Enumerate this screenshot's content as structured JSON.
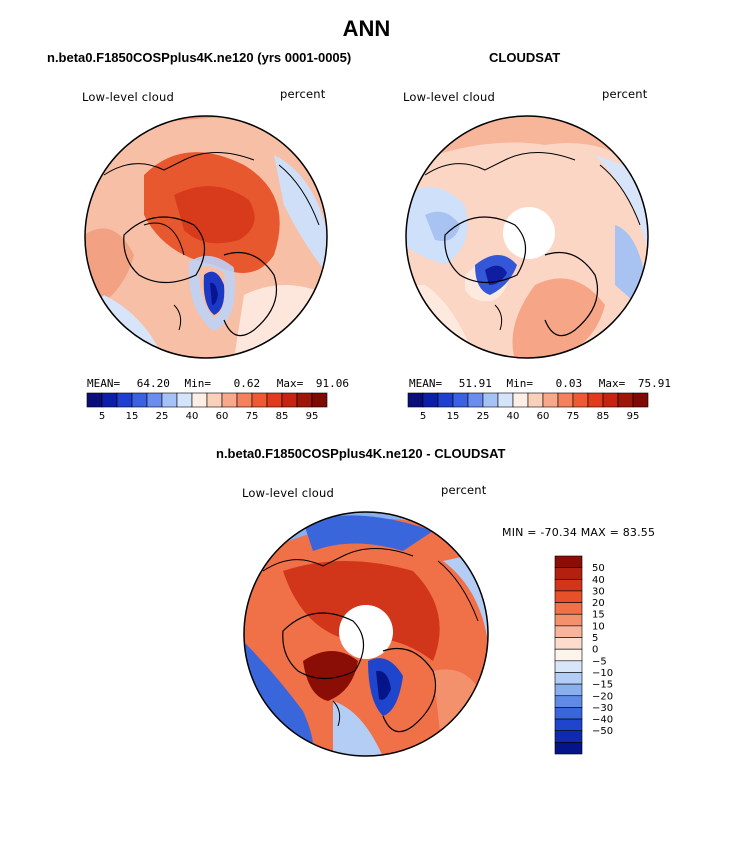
{
  "figure": {
    "title": "ANN"
  },
  "panels": [
    {
      "title": "n.beta0.F1850COSPplus4K.ne120 (yrs 0001-0005)",
      "variable": "Low-level cloud",
      "units": "percent",
      "stats": {
        "mean_label": "MEAN=",
        "mean": "64.20",
        "min_label": "Min=",
        "min": "0.62",
        "max_label": "Max=",
        "max": "91.06"
      }
    },
    {
      "title": "CLOUDSAT",
      "variable": "Low-level cloud",
      "units": "percent",
      "stats": {
        "mean_label": "MEAN=",
        "mean": "51.91",
        "min_label": "Min=",
        "min": "0.03",
        "max_label": "Max=",
        "max": "75.91"
      }
    },
    {
      "title": "n.beta0.F1850COSPplus4K.ne120 - CLOUDSAT",
      "variable": "Low-level cloud",
      "units": "percent",
      "minmax_text": "MIN = -70.34 MAX =  83.55"
    }
  ],
  "colorbars": {
    "top": {
      "tick_labels": [
        "5",
        "15",
        "25",
        "40",
        "60",
        "75",
        "85",
        "95"
      ],
      "colors": [
        "#0a0e7a",
        "#0c1fa8",
        "#1f3fd1",
        "#3b62e3",
        "#6a8df0",
        "#a6c1f6",
        "#d5e4fb",
        "#fdeee6",
        "#fbd0bb",
        "#f8a98b",
        "#f4805c",
        "#ef5a34",
        "#e23a1c",
        "#c62310",
        "#9e1609",
        "#7d0a05"
      ]
    },
    "diff": {
      "tick_labels": [
        "50",
        "40",
        "30",
        "20",
        "15",
        "10",
        "5",
        "0",
        "−5",
        "−10",
        "−15",
        "−20",
        "−30",
        "−40",
        "−50"
      ],
      "colors": [
        "#8b0e06",
        "#b3200d",
        "#d2361a",
        "#e6512a",
        "#f07048",
        "#f4916d",
        "#f8b59c",
        "#fcdccc",
        "#fdf4ee",
        "#d9e6fa",
        "#b4cdf4",
        "#8aafee",
        "#5f8be6",
        "#3a66dc",
        "#1e45cc",
        "#0f2ab0",
        "#06148a"
      ]
    }
  }
}
